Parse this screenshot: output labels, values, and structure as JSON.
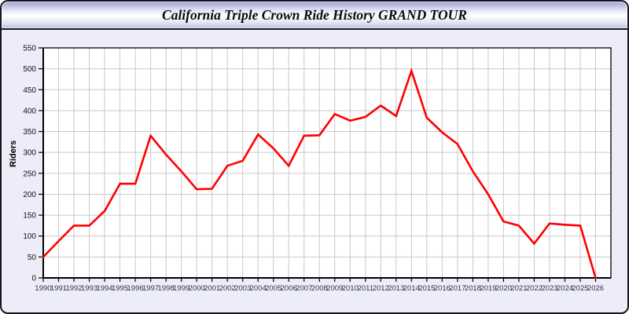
{
  "window": {
    "title": "California Triple Crown Ride History GRAND TOUR"
  },
  "colors": {
    "panel_bg": "#ededfa",
    "window_border": "#15151c",
    "plot_bg": "#ffffff",
    "grid": "#c9c9c9",
    "axis": "#000000",
    "tick_label": "#32324e",
    "line": "#ff0000"
  },
  "chart_data": {
    "type": "line",
    "title": "California Triple Crown Ride History GRAND TOUR",
    "xlabel": "",
    "ylabel": "Riders",
    "xlim": [
      1990,
      2027
    ],
    "ylim": [
      0,
      550
    ],
    "ytick_step": 50,
    "yticks": [
      0,
      50,
      100,
      150,
      200,
      250,
      300,
      350,
      400,
      450,
      500,
      550
    ],
    "x": [
      1990,
      1991,
      1992,
      1993,
      1994,
      1995,
      1996,
      1997,
      1998,
      1999,
      2000,
      2001,
      2002,
      2003,
      2004,
      2005,
      2006,
      2007,
      2008,
      2009,
      2010,
      2011,
      2012,
      2013,
      2014,
      2015,
      2016,
      2017,
      2018,
      2019,
      2020,
      2021,
      2022,
      2023,
      2024,
      2025,
      2026
    ],
    "series": [
      {
        "name": "Riders",
        "color": "#ff0000",
        "values": [
          50,
          88,
          125,
          125,
          160,
          225,
          225,
          340,
          295,
          255,
          212,
          213,
          268,
          280,
          343,
          310,
          268,
          340,
          341,
          392,
          376,
          385,
          412,
          387,
          495,
          383,
          348,
          320,
          255,
          200,
          135,
          125,
          82,
          130,
          127,
          125,
          0
        ]
      }
    ],
    "grid": true,
    "legend": "none"
  }
}
